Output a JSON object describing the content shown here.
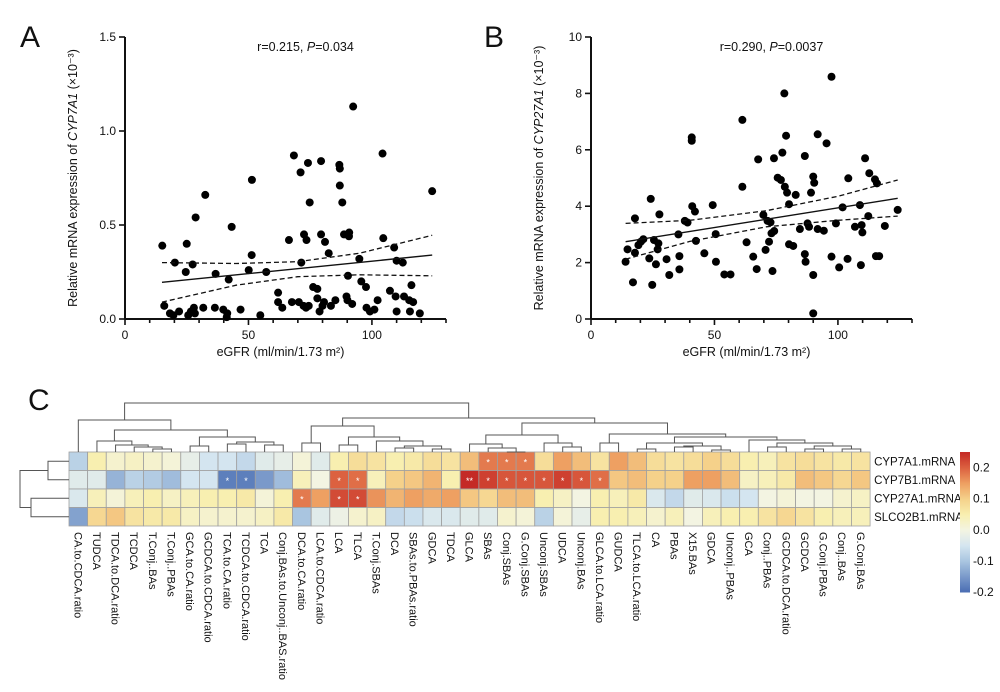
{
  "panels": {
    "a": "A",
    "b": "B",
    "c": "C"
  },
  "chart_data": [
    {
      "type": "scatter",
      "panel": "A",
      "annotation": "r=0.215, P=0.034",
      "annotation_italic": "P",
      "xlabel": "eGFR (ml/min/1.73 m²)",
      "ylabel": "Relative mRNA expression of CYP7A1 (×10⁻³)",
      "ylabel_italic": "CYP7A1",
      "xlim": [
        0,
        130
      ],
      "ylim": [
        0,
        1.5
      ],
      "xticks": [
        "0",
        "50",
        "100"
      ],
      "xtick_values": [
        0,
        50,
        100
      ],
      "yticks": [
        "0.0",
        "0.5",
        "1.0",
        "1.5"
      ],
      "ytick_values": [
        0,
        0.5,
        1.0,
        1.5
      ],
      "points": [
        [
          15.1,
          0.39
        ],
        [
          25,
          0.4
        ],
        [
          28.6,
          0.54
        ],
        [
          32.5,
          0.66
        ],
        [
          20.2,
          0.3
        ],
        [
          24.6,
          0.25
        ],
        [
          27.4,
          0.29
        ],
        [
          15.9,
          0.07
        ],
        [
          18.2,
          0.03
        ],
        [
          19.6,
          0.02
        ],
        [
          21.9,
          0.04
        ],
        [
          25.6,
          0.02
        ],
        [
          26.7,
          0.04
        ],
        [
          27.9,
          0.06
        ],
        [
          28.3,
          0.03
        ],
        [
          31.7,
          0.06
        ],
        [
          36.4,
          0.06
        ],
        [
          36.7,
          0.24
        ],
        [
          39.8,
          0.05
        ],
        [
          41.4,
          0.03
        ],
        [
          41.2,
          0.01
        ],
        [
          42,
          0.21
        ],
        [
          43.2,
          0.49
        ],
        [
          46.8,
          0.05
        ],
        [
          51.4,
          0.74
        ],
        [
          51.3,
          0.34
        ],
        [
          50.1,
          0.26
        ],
        [
          54.8,
          0.02
        ],
        [
          57.2,
          0.25
        ],
        [
          62,
          0.14
        ],
        [
          62,
          0.09
        ],
        [
          63.7,
          0.06
        ],
        [
          66.4,
          0.42
        ],
        [
          67.6,
          0.09
        ],
        [
          68.4,
          0.87
        ],
        [
          71.1,
          0.78
        ],
        [
          71.4,
          0.3
        ],
        [
          72.5,
          0.45
        ],
        [
          73.5,
          0.42
        ],
        [
          74.1,
          0.83
        ],
        [
          70.4,
          0.09
        ],
        [
          72.3,
          0.07
        ],
        [
          73.3,
          0.06
        ],
        [
          74.4,
          0.07
        ],
        [
          74.8,
          0.62
        ],
        [
          76.2,
          0.17
        ],
        [
          77.9,
          0.16
        ],
        [
          77.9,
          0.11
        ],
        [
          78.8,
          0.04
        ],
        [
          79.4,
          0.84
        ],
        [
          79.4,
          0.45
        ],
        [
          80.6,
          0.09
        ],
        [
          80,
          0.07
        ],
        [
          81,
          0.41
        ],
        [
          82.5,
          0.35
        ],
        [
          83.4,
          0.07
        ],
        [
          85.2,
          0.1
        ],
        [
          86.8,
          0.82
        ],
        [
          87,
          0.8
        ],
        [
          87,
          0.71
        ],
        [
          88,
          0.62
        ],
        [
          88.7,
          0.45
        ],
        [
          90.8,
          0.46
        ],
        [
          90.7,
          0.44
        ],
        [
          90.3,
          0.23
        ],
        [
          89.7,
          0.12
        ],
        [
          90.1,
          0.1
        ],
        [
          92,
          0.08
        ],
        [
          92.4,
          1.13
        ],
        [
          94.9,
          0.32
        ],
        [
          95.7,
          0.2
        ],
        [
          97.6,
          0.17
        ],
        [
          97.8,
          0.06
        ],
        [
          99.2,
          0.04
        ],
        [
          101,
          0.05
        ],
        [
          102.3,
          0.1
        ],
        [
          104.3,
          0.88
        ],
        [
          104.6,
          0.43
        ],
        [
          107.3,
          0.15
        ],
        [
          109,
          0.38
        ],
        [
          109.6,
          0.12
        ],
        [
          110,
          0.31
        ],
        [
          110,
          0.04
        ],
        [
          112.5,
          0.3
        ],
        [
          113,
          0.12
        ],
        [
          115.1,
          0.1
        ],
        [
          116,
          0.18
        ],
        [
          116.7,
          0.09
        ],
        [
          115.4,
          0.04
        ],
        [
          119.4,
          0.03
        ],
        [
          124.4,
          0.68
        ]
      ],
      "fit_line": [
        [
          15,
          0.195
        ],
        [
          124.4,
          0.34
        ]
      ],
      "ci_upper": [
        [
          15,
          0.3
        ],
        [
          45,
          0.295
        ],
        [
          70,
          0.305
        ],
        [
          95,
          0.35
        ],
        [
          124.4,
          0.445
        ]
      ],
      "ci_lower": [
        [
          15,
          0.09
        ],
        [
          45,
          0.18
        ],
        [
          70,
          0.225
        ],
        [
          95,
          0.235
        ],
        [
          124.4,
          0.23
        ]
      ]
    },
    {
      "type": "scatter",
      "panel": "B",
      "annotation": "r=0.290, P=0.0037",
      "annotation_italic": "P",
      "xlabel": "eGFR (ml/min/1.73 m²)",
      "ylabel": "Relative mRNA expression of CYP27A1 (×10⁻³)",
      "ylabel_italic": "CYP27A1",
      "xlim": [
        0,
        130
      ],
      "ylim": [
        0,
        10
      ],
      "xticks": [
        "0",
        "50",
        "100"
      ],
      "xtick_values": [
        0,
        50,
        100
      ],
      "yticks": [
        "0",
        "2",
        "4",
        "6",
        "8",
        "10"
      ],
      "ytick_values": [
        0,
        2,
        4,
        6,
        8,
        10
      ],
      "points": [
        [
          14,
          2.03
        ],
        [
          14.8,
          2.47
        ],
        [
          17,
          1.3
        ],
        [
          17.8,
          3.57
        ],
        [
          17.8,
          2.35
        ],
        [
          19.2,
          2.62
        ],
        [
          20.2,
          2.74
        ],
        [
          21.2,
          2.83
        ],
        [
          23.6,
          2.15
        ],
        [
          24.2,
          4.26
        ],
        [
          24.8,
          1.21
        ],
        [
          25.5,
          2.8
        ],
        [
          26.3,
          1.94
        ],
        [
          27,
          2.47
        ],
        [
          27.3,
          2.68
        ],
        [
          27.7,
          3.71
        ],
        [
          30.6,
          2.12
        ],
        [
          31.7,
          1.56
        ],
        [
          35.4,
          3.0
        ],
        [
          35.8,
          2.23
        ],
        [
          35.8,
          1.76
        ],
        [
          38,
          3.48
        ],
        [
          39.1,
          3.42
        ],
        [
          40.8,
          6.44
        ],
        [
          40.8,
          6.32
        ],
        [
          41,
          4.0
        ],
        [
          42.1,
          3.81
        ],
        [
          42.5,
          2.77
        ],
        [
          45.9,
          2.33
        ],
        [
          49.3,
          4.04
        ],
        [
          50.5,
          3.01
        ],
        [
          50.6,
          2.03
        ],
        [
          54,
          1.58
        ],
        [
          56.5,
          1.58
        ],
        [
          61.3,
          7.06
        ],
        [
          61.3,
          4.69
        ],
        [
          63,
          2.72
        ],
        [
          65.7,
          2.21
        ],
        [
          67.1,
          1.77
        ],
        [
          67.7,
          5.66
        ],
        [
          69.8,
          3.69
        ],
        [
          70.7,
          2.45
        ],
        [
          71.5,
          3.48
        ],
        [
          72.1,
          2.74
        ],
        [
          72.7,
          3.43
        ],
        [
          73.1,
          3.04
        ],
        [
          73.5,
          1.7
        ],
        [
          74.1,
          5.7
        ],
        [
          74.2,
          3.12
        ],
        [
          75.6,
          5.01
        ],
        [
          76.9,
          4.93
        ],
        [
          77.5,
          5.9
        ],
        [
          78.3,
          8.0
        ],
        [
          78.5,
          4.69
        ],
        [
          79,
          6.5
        ],
        [
          79.4,
          4.48
        ],
        [
          80.2,
          2.65
        ],
        [
          80.2,
          4.07
        ],
        [
          81.9,
          2.59
        ],
        [
          82.9,
          4.4
        ],
        [
          84.6,
          3.19
        ],
        [
          86.6,
          5.78
        ],
        [
          86.6,
          2.3
        ],
        [
          86.9,
          2.03
        ],
        [
          87.7,
          3.39
        ],
        [
          88.3,
          3.27
        ],
        [
          89.1,
          4.48
        ],
        [
          90,
          5.05
        ],
        [
          90.4,
          4.83
        ],
        [
          90,
          1.56
        ],
        [
          90,
          0.2
        ],
        [
          91.8,
          6.55
        ],
        [
          91.8,
          3.19
        ],
        [
          94.3,
          3.13
        ],
        [
          95.4,
          6.23
        ],
        [
          97.4,
          8.59
        ],
        [
          97.4,
          2.21
        ],
        [
          99.2,
          3.39
        ],
        [
          100.5,
          1.83
        ],
        [
          101.9,
          3.96
        ],
        [
          103.9,
          2.13
        ],
        [
          104.2,
          4.99
        ],
        [
          106.9,
          3.27
        ],
        [
          108.9,
          4.04
        ],
        [
          109.3,
          1.91
        ],
        [
          109.6,
          3.33
        ],
        [
          109.9,
          3.07
        ],
        [
          111,
          5.7
        ],
        [
          112.3,
          3.65
        ],
        [
          112.7,
          5.17
        ],
        [
          115,
          4.95
        ],
        [
          115.8,
          4.81
        ],
        [
          115.4,
          2.23
        ],
        [
          116.7,
          2.23
        ],
        [
          119,
          3.3
        ],
        [
          124.2,
          3.87
        ]
      ],
      "fit_line": [
        [
          14,
          2.74
        ],
        [
          124.2,
          4.28
        ]
      ],
      "ci_upper": [
        [
          14,
          3.39
        ],
        [
          40,
          3.5
        ],
        [
          71,
          3.84
        ],
        [
          100,
          4.35
        ],
        [
          124.2,
          4.93
        ]
      ],
      "ci_lower": [
        [
          14,
          2.12
        ],
        [
          40,
          2.75
        ],
        [
          71,
          3.27
        ],
        [
          100,
          3.5
        ],
        [
          124.2,
          3.65
        ]
      ]
    },
    {
      "type": "heatmap",
      "panel": "C",
      "rows": [
        "CYP7A1.mRNA",
        "CYP7B1.mRNA",
        "CYP27A1.mRNA",
        "SLCO2B1.mRNA"
      ],
      "columns": [
        "CA.to.CDCA.ratio",
        "TUDCA",
        "TDCA.to.DCA.ratio",
        "TCDCA",
        "T.Conj..BAs",
        "T.Conj..PBAs",
        "GCA.to.CA.ratio",
        "GCDCA.to.CDCA.ratio",
        "TCA.to.CA.ratio",
        "TCDCA.to.CDCA.ratio",
        "TCA",
        "Conj.BAs.to.Unconj..BAS.ratio",
        "DCA.to.CA.ratio",
        "LCA.to.CDCA.ratio",
        "LCA",
        "TLCA",
        "T.Conj.SBAs",
        "DCA",
        "SBAs.to.PBAs.ratio",
        "GDCA",
        "TDCA",
        "GLCA",
        "SBAs",
        "Conj.SBAs",
        "G.Conj.SBAs",
        "Unconj.SBAs",
        "UDCA",
        "Unconj.BAs",
        "GLCA.to.LCA.ratio",
        "GUDCA",
        "TLCA.to.LCA.ratio",
        "CA",
        "PBAs",
        "X15.BAs",
        "GDCA",
        "Unconj..PBAs",
        "GCA",
        "Conj..PBAs",
        "GCDCA.to.DCA.ratio",
        "GCDCA",
        "G.Conj.PBAs",
        "Conj..BAs",
        "G.Conj.BAs"
      ],
      "values": [
        [
          -0.08,
          0.05,
          0.02,
          0.03,
          0.02,
          0.01,
          -0.02,
          -0.05,
          -0.05,
          -0.07,
          -0.03,
          -0.02,
          0.01,
          -0.03,
          0.05,
          0.08,
          0.07,
          0.05,
          0.06,
          0.08,
          0.07,
          0.12,
          0.18,
          0.18,
          0.18,
          0.08,
          0.15,
          0.12,
          0.07,
          0.15,
          0.12,
          0.08,
          0.07,
          0.08,
          0.1,
          0.08,
          0.05,
          0.04,
          0.07,
          0.08,
          0.07,
          0.06,
          0.07
        ],
        [
          -0.03,
          -0.03,
          -0.12,
          -0.08,
          -0.09,
          -0.11,
          -0.05,
          -0.05,
          -0.18,
          -0.18,
          -0.15,
          -0.11,
          0.04,
          0.0,
          0.2,
          0.19,
          0.04,
          0.1,
          0.11,
          0.13,
          0.05,
          0.25,
          0.23,
          0.21,
          0.21,
          0.21,
          0.23,
          0.21,
          0.19,
          0.11,
          0.12,
          0.1,
          0.1,
          0.15,
          0.15,
          0.12,
          0.03,
          0.04,
          0.06,
          0.12,
          0.11,
          0.09,
          0.11
        ],
        [
          -0.04,
          0.04,
          0.01,
          0.04,
          0.05,
          0.03,
          0.04,
          0.05,
          0.05,
          0.06,
          0.01,
          0.05,
          0.18,
          0.15,
          0.22,
          0.22,
          0.16,
          0.13,
          0.15,
          0.14,
          0.15,
          0.11,
          0.09,
          0.12,
          0.12,
          0.05,
          0.03,
          0.0,
          0.05,
          0.04,
          0.06,
          -0.04,
          -0.07,
          -0.03,
          -0.04,
          -0.06,
          -0.05,
          0.0,
          0.01,
          0.0,
          0.0,
          0.02,
          0.03
        ],
        [
          -0.14,
          0.09,
          0.11,
          0.07,
          0.06,
          0.06,
          0.03,
          0.02,
          0.02,
          0.02,
          0.03,
          0.06,
          -0.1,
          -0.03,
          -0.01,
          0.02,
          0.03,
          -0.07,
          -0.06,
          -0.04,
          -0.04,
          -0.03,
          -0.03,
          0.02,
          0.01,
          -0.08,
          0.01,
          -0.02,
          0.05,
          0.05,
          0.04,
          0.02,
          0.04,
          0.0,
          0.04,
          0.05,
          0.05,
          0.07,
          0.09,
          0.07,
          0.05,
          0.04,
          0.04
        ]
      ],
      "significance": [
        [
          "",
          "",
          "",
          "",
          "",
          "",
          "",
          "",
          "",
          "",
          "",
          "",
          "",
          "",
          "",
          "",
          "",
          "",
          "",
          "",
          "",
          "",
          "*",
          "*",
          "*",
          "",
          "",
          "",
          "",
          "",
          "",
          "",
          "",
          "",
          "",
          "",
          "",
          "",
          "",
          "",
          "",
          "",
          ""
        ],
        [
          "",
          "",
          "",
          "",
          "",
          "",
          "",
          "",
          "*",
          "*",
          "",
          "",
          "",
          "",
          "*",
          "*",
          "",
          "",
          "",
          "",
          "",
          "**",
          "*",
          "*",
          "*",
          "*",
          "*",
          "*",
          "*",
          "",
          "",
          "",
          "",
          "",
          "",
          "",
          "",
          "",
          "",
          "",
          "",
          "",
          ""
        ],
        [
          "",
          "",
          "",
          "",
          "",
          "",
          "",
          "",
          "",
          "",
          "",
          "",
          "*",
          "",
          "*",
          "*",
          "",
          "",
          "",
          "",
          "",
          "",
          "",
          "",
          "",
          "",
          "",
          "",
          "",
          "",
          "",
          "",
          "",
          "",
          "",
          "",
          "",
          "",
          "",
          "",
          "",
          "",
          ""
        ],
        [
          "",
          "",
          "",
          "",
          "",
          "",
          "",
          "",
          "",
          "",
          "",
          "",
          "",
          "",
          "",
          "",
          "",
          "",
          "",
          "",
          "",
          "",
          "",
          "",
          "",
          "",
          "",
          "",
          "",
          "",
          "",
          "",
          "",
          "",
          "",
          "",
          "",
          "",
          "",
          "",
          "",
          "",
          ""
        ]
      ],
      "colorbar": {
        "range": [
          -0.2,
          0.25
        ],
        "ticks": [
          "0.2",
          "0.1",
          "0.0",
          "-0.1",
          "-0.2"
        ],
        "tick_values": [
          0.2,
          0.1,
          0.0,
          -0.1,
          -0.2
        ],
        "colors": {
          "low": "#4a6db3",
          "mid": "#f4f4e0",
          "high": "#c42a26"
        }
      },
      "row_dendrogram": true,
      "column_dendrogram": true
    }
  ]
}
